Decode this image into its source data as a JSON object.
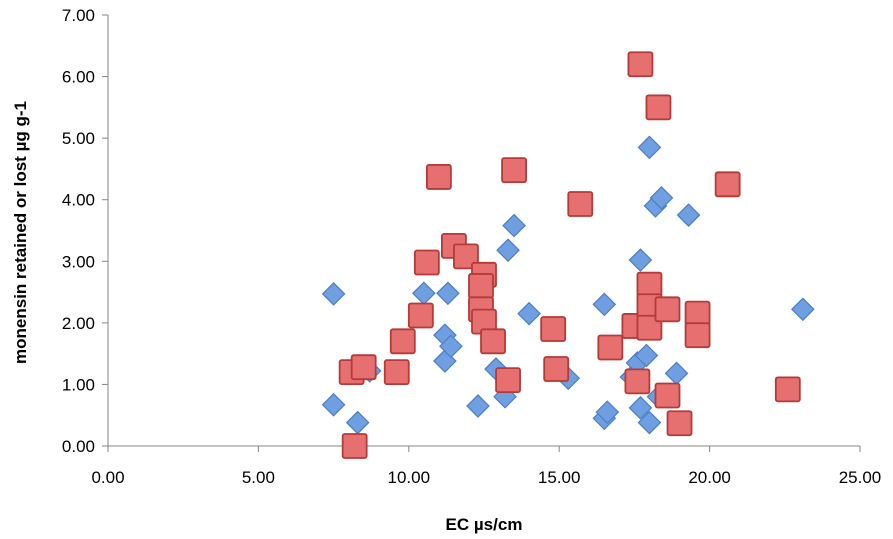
{
  "chart_data": {
    "type": "scatter",
    "title": "",
    "xlabel": "EC µs/cm",
    "ylabel": "monensin retained or lost µg g-1",
    "xlim": [
      0,
      25
    ],
    "ylim": [
      0,
      7
    ],
    "x_ticks": [
      "0.00",
      "5.00",
      "10.00",
      "15.00",
      "20.00",
      "25.00"
    ],
    "y_ticks": [
      "0.00",
      "1.00",
      "2.00",
      "3.00",
      "4.00",
      "5.00",
      "6.00",
      "7.00"
    ],
    "grid": false,
    "legend": "none",
    "series": [
      {
        "marker": "diamond",
        "color": "#6f9fe0",
        "points": [
          [
            7.5,
            2.47
          ],
          [
            7.5,
            0.67
          ],
          [
            8.3,
            0.38
          ],
          [
            8.7,
            1.22
          ],
          [
            10.5,
            2.48
          ],
          [
            11.2,
            1.8
          ],
          [
            11.3,
            2.48
          ],
          [
            11.2,
            1.38
          ],
          [
            11.4,
            1.62
          ],
          [
            12.3,
            0.65
          ],
          [
            12.9,
            1.25
          ],
          [
            13.2,
            0.8
          ],
          [
            13.3,
            3.18
          ],
          [
            13.5,
            3.58
          ],
          [
            14.0,
            2.15
          ],
          [
            15.3,
            1.1
          ],
          [
            16.5,
            2.3
          ],
          [
            16.5,
            0.45
          ],
          [
            16.6,
            0.55
          ],
          [
            17.4,
            1.12
          ],
          [
            17.6,
            1.35
          ],
          [
            17.7,
            3.02
          ],
          [
            17.7,
            0.62
          ],
          [
            17.9,
            1.47
          ],
          [
            18.0,
            0.38
          ],
          [
            18.0,
            4.85
          ],
          [
            18.2,
            3.9
          ],
          [
            18.3,
            0.8
          ],
          [
            18.4,
            4.03
          ],
          [
            18.9,
            1.18
          ],
          [
            19.3,
            3.75
          ],
          [
            23.1,
            2.22
          ]
        ]
      },
      {
        "marker": "square",
        "color": "#e5706f",
        "points": [
          [
            8.1,
            1.2
          ],
          [
            8.2,
            0.0
          ],
          [
            8.5,
            1.28
          ],
          [
            9.6,
            1.2
          ],
          [
            9.8,
            1.7
          ],
          [
            10.4,
            2.12
          ],
          [
            10.6,
            2.98
          ],
          [
            11.0,
            4.37
          ],
          [
            11.5,
            3.25
          ],
          [
            11.9,
            3.08
          ],
          [
            12.5,
            2.78
          ],
          [
            12.4,
            2.6
          ],
          [
            12.4,
            2.22
          ],
          [
            12.5,
            2.02
          ],
          [
            12.8,
            1.7
          ],
          [
            13.3,
            1.07
          ],
          [
            13.5,
            4.48
          ],
          [
            14.8,
            1.9
          ],
          [
            14.9,
            1.25
          ],
          [
            15.7,
            3.93
          ],
          [
            16.7,
            1.6
          ],
          [
            17.5,
            1.95
          ],
          [
            17.6,
            1.05
          ],
          [
            17.7,
            6.2
          ],
          [
            18.0,
            2.62
          ],
          [
            18.0,
            2.27
          ],
          [
            18.0,
            1.92
          ],
          [
            18.3,
            5.5
          ],
          [
            18.6,
            2.22
          ],
          [
            18.6,
            0.82
          ],
          [
            19.0,
            0.37
          ],
          [
            19.6,
            2.15
          ],
          [
            19.6,
            1.8
          ],
          [
            20.6,
            4.25
          ],
          [
            22.6,
            0.92
          ]
        ]
      }
    ]
  }
}
